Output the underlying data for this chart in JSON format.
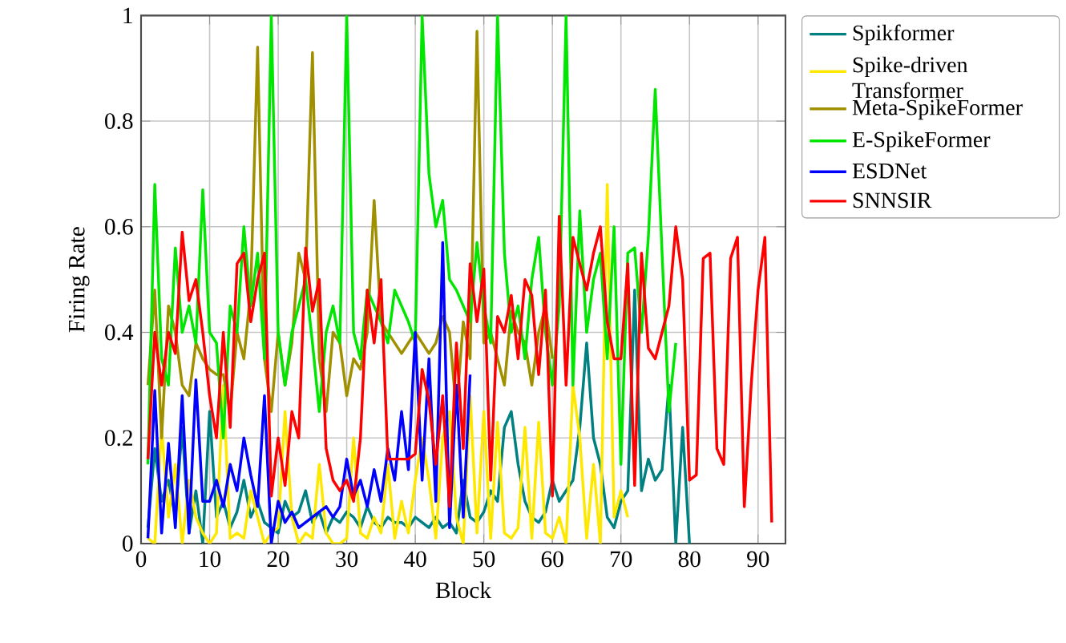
{
  "chart_data": {
    "type": "line",
    "xlabel": "Block",
    "ylabel": "Firing Rate",
    "xlim": [
      0,
      94
    ],
    "ylim": [
      0,
      1
    ],
    "xticks": [
      0,
      10,
      20,
      30,
      40,
      50,
      60,
      70,
      80,
      90
    ],
    "yticks": [
      0,
      0.2,
      0.4,
      0.6,
      0.8,
      1
    ],
    "grid": true,
    "legend": "right",
    "marker": "none",
    "line_style": "solid",
    "x": [
      1,
      2,
      3,
      4,
      5,
      6,
      7,
      8,
      9,
      10,
      11,
      12,
      13,
      14,
      15,
      16,
      17,
      18,
      19,
      20,
      21,
      22,
      23,
      24,
      25,
      26,
      27,
      28,
      29,
      30,
      31,
      32,
      33,
      34,
      35,
      36,
      37,
      38,
      39,
      40,
      41,
      42,
      43,
      44,
      45,
      46,
      47,
      48,
      49,
      50,
      51,
      52,
      53,
      54,
      55,
      56,
      57,
      58,
      59,
      60,
      61,
      62,
      63,
      64,
      65,
      66,
      67,
      68,
      69,
      70,
      71,
      72,
      73,
      74,
      75,
      76,
      77,
      78,
      79,
      80,
      81,
      82,
      83,
      84,
      85,
      86,
      87,
      88,
      89,
      90,
      91,
      92
    ],
    "series": [
      {
        "name": "Spikformer",
        "color": "#008080",
        "values": [
          0.03,
          0.18,
          0.08,
          0.12,
          0.05,
          0.22,
          0.02,
          0.1,
          0.0,
          0.25,
          0.05,
          0.08,
          0.03,
          0.06,
          0.12,
          0.05,
          0.08,
          0.04,
          0.03,
          0.02,
          0.08,
          0.05,
          0.06,
          0.1,
          0.04,
          0.06,
          0.02,
          0.05,
          0.04,
          0.06,
          0.05,
          0.03,
          0.07,
          0.04,
          0.03,
          0.05,
          0.04,
          0.04,
          0.03,
          0.05,
          0.04,
          0.03,
          0.05,
          0.03,
          0.04,
          0.02,
          0.12,
          0.05,
          0.04,
          0.06,
          0.1,
          0.08,
          0.22,
          0.25,
          0.15,
          0.08,
          0.05,
          0.04,
          0.06,
          0.12,
          0.08,
          0.1,
          0.12,
          0.22,
          0.38,
          0.2,
          0.15,
          0.05,
          0.03,
          0.08,
          0.1,
          0.48,
          0.1,
          0.16,
          0.12,
          0.14,
          0.3,
          0.0,
          0.22,
          0.0,
          null,
          null,
          null,
          null,
          null,
          null,
          null,
          null,
          null,
          null,
          null,
          null
        ]
      },
      {
        "name": "Spike-driven Transformer",
        "color": "#ffe800",
        "values": [
          0.01,
          0.0,
          0.22,
          0.05,
          0.15,
          0.0,
          0.12,
          0.05,
          0.02,
          0.0,
          0.02,
          0.3,
          0.01,
          0.02,
          0.01,
          0.1,
          0.05,
          0.0,
          0.02,
          0.03,
          0.25,
          0.05,
          0.0,
          0.02,
          0.01,
          0.15,
          0.02,
          0.0,
          0.0,
          0.01,
          0.2,
          0.02,
          0.01,
          0.05,
          0.02,
          0.15,
          0.01,
          0.08,
          0.02,
          0.12,
          0.2,
          0.12,
          0.01,
          0.2,
          0.25,
          0.05,
          0.0,
          0.28,
          0.02,
          0.25,
          0.01,
          0.23,
          0.02,
          0.01,
          0.03,
          0.22,
          0.01,
          0.23,
          0.02,
          0.01,
          0.05,
          0.0,
          0.3,
          0.2,
          0.01,
          0.15,
          0.0,
          0.68,
          0.05,
          0.1,
          0.05,
          null,
          null,
          null,
          null,
          null,
          null,
          null,
          null,
          null,
          null,
          null,
          null,
          null,
          null,
          null,
          null,
          null,
          null,
          null,
          null,
          null
        ]
      },
      {
        "name": "Meta-SpikeFormer",
        "color": "#a09000",
        "values": [
          0.3,
          0.48,
          0.2,
          0.45,
          0.4,
          0.3,
          0.28,
          0.38,
          0.35,
          0.33,
          0.32,
          0.32,
          0.25,
          0.4,
          0.35,
          0.48,
          0.94,
          0.35,
          0.25,
          0.4,
          0.3,
          0.38,
          0.55,
          0.5,
          0.93,
          0.35,
          0.25,
          0.4,
          0.38,
          0.28,
          0.35,
          0.33,
          0.4,
          0.65,
          0.42,
          0.4,
          0.38,
          0.36,
          0.38,
          0.4,
          0.38,
          0.36,
          0.38,
          0.43,
          0.4,
          0.25,
          0.42,
          0.35,
          0.97,
          0.38,
          0.4,
          0.35,
          0.3,
          0.44,
          0.4,
          0.38,
          0.3,
          0.4,
          0.45,
          0.35,
          null,
          null,
          null,
          null,
          null,
          null,
          null,
          null,
          null,
          null,
          null,
          null,
          null,
          null,
          null,
          null,
          null,
          null,
          null,
          null,
          null,
          null,
          null,
          null,
          null,
          null,
          null,
          null,
          null,
          null,
          null,
          null
        ]
      },
      {
        "name": "E-SpikeFormer",
        "color": "#00e600",
        "values": [
          0.15,
          0.68,
          0.35,
          0.3,
          0.56,
          0.4,
          0.45,
          0.38,
          0.67,
          0.4,
          0.38,
          0.2,
          0.45,
          0.4,
          0.6,
          0.45,
          0.55,
          0.35,
          1.0,
          0.4,
          0.3,
          0.4,
          0.45,
          0.5,
          0.38,
          0.25,
          0.4,
          0.45,
          0.38,
          1.0,
          0.4,
          0.35,
          0.48,
          0.45,
          0.42,
          0.38,
          0.48,
          0.45,
          0.42,
          0.38,
          1.0,
          0.7,
          0.6,
          0.65,
          0.5,
          0.48,
          0.45,
          0.42,
          0.57,
          0.45,
          0.38,
          1.0,
          0.55,
          0.4,
          0.45,
          0.35,
          0.5,
          0.58,
          0.4,
          0.3,
          0.45,
          1.0,
          0.3,
          0.63,
          0.4,
          0.5,
          0.55,
          0.35,
          0.6,
          0.15,
          0.55,
          0.56,
          0.4,
          0.58,
          0.86,
          0.55,
          0.25,
          0.38,
          null,
          null,
          null,
          null,
          null,
          null,
          null,
          null,
          null,
          null,
          null,
          null,
          null,
          null
        ]
      },
      {
        "name": "ESDNet",
        "color": "#0000ff",
        "values": [
          0.01,
          0.29,
          0.02,
          0.19,
          0.03,
          0.28,
          0.02,
          0.31,
          0.08,
          0.08,
          0.12,
          0.07,
          0.15,
          0.1,
          0.2,
          0.13,
          0.07,
          0.28,
          0.0,
          0.08,
          0.04,
          0.06,
          0.03,
          0.04,
          0.05,
          0.06,
          0.07,
          0.05,
          0.07,
          0.16,
          0.09,
          0.12,
          0.07,
          0.14,
          0.08,
          0.18,
          0.12,
          0.25,
          0.14,
          0.4,
          0.12,
          0.35,
          0.08,
          0.57,
          0.03,
          0.3,
          0.05,
          0.32,
          null,
          null,
          null,
          null,
          null,
          null,
          null,
          null,
          null,
          null,
          null,
          null,
          null,
          null,
          null,
          null,
          null,
          null,
          null,
          null,
          null,
          null,
          null,
          null,
          null,
          null,
          null,
          null,
          null,
          null,
          null,
          null,
          null,
          null,
          null,
          null,
          null,
          null,
          null,
          null,
          null,
          null,
          null,
          null
        ]
      },
      {
        "name": "SNNSIR",
        "color": "#ff0000",
        "values": [
          0.16,
          0.4,
          0.3,
          0.4,
          0.36,
          0.59,
          0.46,
          0.5,
          0.4,
          0.28,
          0.2,
          0.4,
          0.22,
          0.53,
          0.55,
          0.42,
          0.5,
          0.55,
          0.09,
          0.2,
          0.11,
          0.25,
          0.2,
          0.56,
          0.44,
          0.5,
          0.18,
          0.12,
          0.1,
          0.12,
          0.08,
          0.2,
          0.48,
          0.38,
          0.5,
          0.16,
          0.16,
          0.16,
          0.16,
          0.17,
          0.33,
          0.27,
          0.15,
          0.28,
          0.07,
          0.38,
          0.18,
          0.53,
          0.42,
          0.52,
          0.12,
          0.43,
          0.4,
          0.47,
          0.35,
          0.5,
          0.47,
          0.32,
          0.48,
          0.09,
          0.62,
          0.3,
          0.58,
          0.53,
          0.48,
          0.55,
          0.6,
          0.42,
          0.35,
          0.35,
          0.53,
          0.11,
          0.55,
          0.37,
          0.35,
          0.4,
          0.45,
          0.6,
          0.5,
          0.12,
          0.13,
          0.54,
          0.55,
          0.18,
          0.15,
          0.54,
          0.58,
          0.07,
          0.3,
          0.48,
          0.58,
          0.04
        ]
      }
    ]
  }
}
